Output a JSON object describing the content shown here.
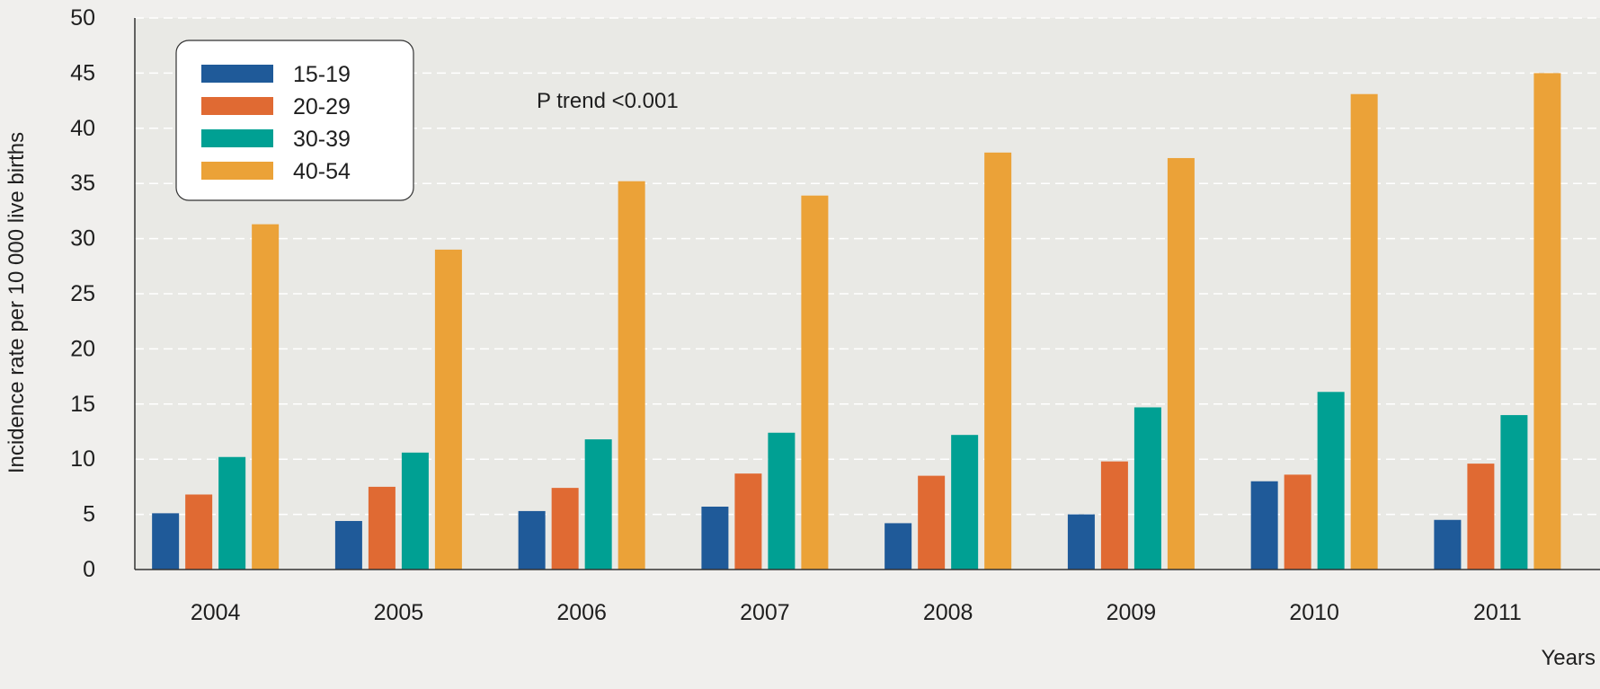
{
  "chart_data": {
    "type": "bar",
    "title": "",
    "xlabel": "Years",
    "ylabel": "Incidence rate per 10 000 live births",
    "ylim": [
      0,
      50
    ],
    "yticks": [
      0,
      5,
      10,
      15,
      20,
      25,
      30,
      35,
      40,
      45,
      50
    ],
    "grid": true,
    "legend_position": "top-left",
    "annotation": "P trend <0.001",
    "categories": [
      "2004",
      "2005",
      "2006",
      "2007",
      "2008",
      "2009",
      "2010",
      "2011"
    ],
    "series": [
      {
        "name": "15-19",
        "color": "#1f5a99",
        "values": [
          5.1,
          4.4,
          5.3,
          5.7,
          4.2,
          5.0,
          8.0,
          4.5
        ]
      },
      {
        "name": "20-29",
        "color": "#e06a33",
        "values": [
          6.8,
          7.5,
          7.4,
          8.7,
          8.5,
          9.8,
          8.6,
          9.6
        ]
      },
      {
        "name": "30-39",
        "color": "#00a093",
        "values": [
          10.2,
          10.6,
          11.8,
          12.4,
          12.2,
          14.7,
          16.1,
          14.0
        ]
      },
      {
        "name": "40-54",
        "color": "#eba238",
        "values": [
          31.3,
          29.0,
          35.2,
          33.9,
          37.8,
          37.3,
          43.1,
          45.0
        ]
      }
    ]
  },
  "colors": {
    "plot_background": "#e9e9e5",
    "page_background": "#f0efed",
    "grid": "#ffffff",
    "axis": "#333333"
  }
}
